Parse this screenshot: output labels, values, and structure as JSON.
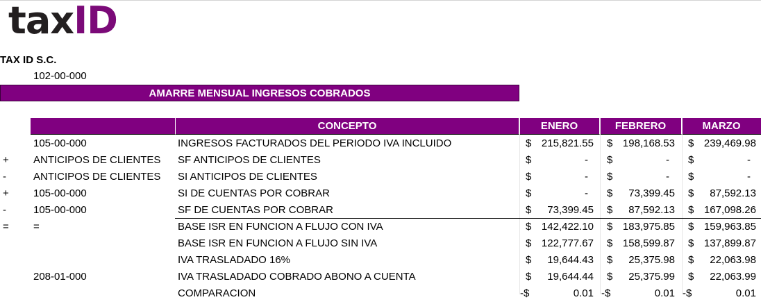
{
  "logo": {
    "part1": "tax",
    "part2": "ID"
  },
  "company": "TAX ID S.C.",
  "account": "102-00-000",
  "banner_title": "AMARRE MENSUAL INGRESOS COBRADOS",
  "headers": {
    "concept": "CONCEPTO",
    "months": [
      "ENERO",
      "FEBRERO",
      "MARZO"
    ]
  },
  "currency_symbol": "$",
  "rows": [
    {
      "sign": "",
      "code": "105-00-000",
      "concept": "INGRESOS FACTURADOS DEL PERIODO IVA INCLUIDO",
      "cells": [
        {
          "cur": "$",
          "val": "215,821.55"
        },
        {
          "cur": "$",
          "val": "198,168.53"
        },
        {
          "cur": "$",
          "val": "239,469.98"
        }
      ]
    },
    {
      "sign": "+",
      "code": "ANTICIPOS DE CLIENTES",
      "concept": "SF ANTICIPOS DE CLIENTES",
      "cells": [
        {
          "cur": "$",
          "val": "-"
        },
        {
          "cur": "$",
          "val": "-"
        },
        {
          "cur": "$",
          "val": "-"
        }
      ]
    },
    {
      "sign": "-",
      "code": "ANTICIPOS DE CLIENTES",
      "concept": "SI ANTICIPOS DE CLIENTES",
      "cells": [
        {
          "cur": "$",
          "val": "-"
        },
        {
          "cur": "$",
          "val": "-"
        },
        {
          "cur": "$",
          "val": "-"
        }
      ]
    },
    {
      "sign": "+",
      "code": "105-00-000",
      "concept": "SI DE CUENTAS POR COBRAR",
      "cells": [
        {
          "cur": "$",
          "val": "-"
        },
        {
          "cur": "$",
          "val": "73,399.45"
        },
        {
          "cur": "$",
          "val": "87,592.13"
        }
      ]
    },
    {
      "sign": "-",
      "code": "105-00-000",
      "concept": "SF DE CUENTAS POR COBRAR",
      "cells": [
        {
          "cur": "$",
          "val": "73,399.45"
        },
        {
          "cur": "$",
          "val": "87,592.13"
        },
        {
          "cur": "$",
          "val": "167,098.26"
        }
      ]
    },
    {
      "sign": "=",
      "code": "=",
      "concept": "BASE ISR EN FUNCION A FLUJO CON IVA",
      "cells": [
        {
          "cur": "$",
          "val": "142,422.10"
        },
        {
          "cur": "$",
          "val": "183,975.85"
        },
        {
          "cur": "$",
          "val": "159,963.85"
        }
      ]
    },
    {
      "sign": "",
      "code": "",
      "concept": "BASE ISR EN FUNCION A FLUJO SIN IVA",
      "cells": [
        {
          "cur": "$",
          "val": "122,777.67"
        },
        {
          "cur": "$",
          "val": "158,599.87"
        },
        {
          "cur": "$",
          "val": "137,899.87"
        }
      ]
    },
    {
      "sign": "",
      "code": "",
      "concept": "IVA TRASLADADO 16%",
      "cells": [
        {
          "cur": "$",
          "val": "19,644.43"
        },
        {
          "cur": "$",
          "val": "25,375.98"
        },
        {
          "cur": "$",
          "val": "22,063.98"
        }
      ]
    },
    {
      "sign": "",
      "code": "208-01-000",
      "concept": "IVA TRASLADADO COBRADO ABONO A CUENTA",
      "cells": [
        {
          "cur": "$",
          "val": "19,644.44"
        },
        {
          "cur": "$",
          "val": "25,375.99"
        },
        {
          "cur": "$",
          "val": "22,063.99"
        }
      ]
    },
    {
      "sign": "",
      "code": "",
      "concept": "COMPARACION",
      "cells": [
        {
          "cur": "-$",
          "val": "0.01"
        },
        {
          "cur": "-$",
          "val": "0.01"
        },
        {
          "cur": "-$",
          "val": "0.01"
        }
      ]
    }
  ]
}
